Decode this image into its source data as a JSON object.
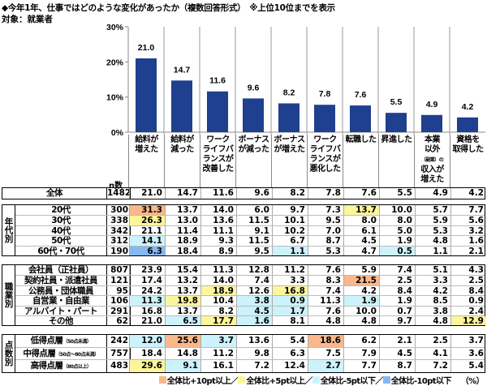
{
  "title": "◆今年1年、仕事ではどのような変化があったか（複数回答形式）　※上位10位までを表示",
  "subtitle": "対象：就業者",
  "colors": {
    "bar": "#1f3f8f",
    "plus10": "#f9b88a",
    "plus5": "#fdf59a",
    "minus5": "#ccf3fb",
    "minus10": "#86b8f0"
  },
  "chart_data": {
    "type": "bar",
    "categories": [
      "給料が増えた",
      "給料が減った",
      "ワークライフバランスが改善した",
      "ボーナスが減った",
      "ボーナスが増えた",
      "ワークライフバランスが悪化した",
      "転職した",
      "昇進した",
      "本業以外（副業）の収入が増えた",
      "資格を取得した"
    ],
    "values": [
      21.0,
      14.7,
      11.6,
      9.6,
      8.2,
      7.8,
      7.6,
      5.5,
      4.9,
      4.2
    ],
    "yticks": [
      "0%",
      "10%",
      "20%",
      "30%"
    ],
    "ylim": [
      0,
      30
    ],
    "grid": false
  },
  "headers": [
    [
      "給料が",
      "増えた"
    ],
    [
      "給料が",
      "減った"
    ],
    [
      "ワーク",
      "ライフバ",
      "ランスが",
      "改善した"
    ],
    [
      "ボーナス",
      "が減った"
    ],
    [
      "ボーナス",
      "が増えた"
    ],
    [
      "ワーク",
      "ライフバ",
      "ランスが",
      "悪化した"
    ],
    [
      "転職した"
    ],
    [
      "昇進した"
    ],
    [
      "本業",
      "以外",
      "（副業）の",
      "収入が",
      "増えた"
    ],
    [
      "資格を",
      "取得した"
    ]
  ],
  "n_label": "n数",
  "total": {
    "label": "全体",
    "n": "1482",
    "values": [
      "21.0",
      "14.7",
      "11.6",
      "9.6",
      "8.2",
      "7.8",
      "7.6",
      "5.5",
      "4.9",
      "4.2"
    ]
  },
  "groups": [
    {
      "label": "年代別",
      "rows": [
        {
          "label": "20代",
          "n": "300",
          "values": [
            "31.3",
            "13.7",
            "14.0",
            "6.0",
            "9.7",
            "7.3",
            "13.7",
            "10.0",
            "5.7",
            "7.7"
          ],
          "hl": [
            "p10",
            "",
            "",
            "",
            "",
            "",
            "p5",
            "",
            "",
            ""
          ]
        },
        {
          "label": "30代",
          "n": "338",
          "values": [
            "26.3",
            "13.0",
            "13.6",
            "11.5",
            "10.1",
            "9.5",
            "8.0",
            "8.0",
            "5.9",
            "5.6"
          ],
          "hl": [
            "p5",
            "",
            "",
            "",
            "",
            "",
            "",
            "",
            "",
            ""
          ]
        },
        {
          "label": "40代",
          "n": "342",
          "values": [
            "21.1",
            "11.4",
            "11.1",
            "9.1",
            "10.2",
            "7.0",
            "6.1",
            "5.0",
            "5.3",
            "3.2"
          ],
          "hl": [
            "",
            "",
            "",
            "",
            "",
            "",
            "",
            "",
            "",
            ""
          ]
        },
        {
          "label": "50代",
          "n": "312",
          "values": [
            "14.1",
            "18.9",
            "9.3",
            "11.5",
            "6.7",
            "8.7",
            "4.5",
            "1.9",
            "4.8",
            "1.6"
          ],
          "hl": [
            "m5",
            "",
            "",
            "",
            "",
            "",
            "",
            "",
            "",
            ""
          ]
        },
        {
          "label": "60代・70代",
          "n": "190",
          "values": [
            "6.3",
            "18.4",
            "8.9",
            "9.5",
            "1.1",
            "5.3",
            "4.7",
            "0.5",
            "1.1",
            "2.1"
          ],
          "hl": [
            "m10",
            "",
            "",
            "",
            "m5",
            "",
            "",
            "m5",
            "",
            ""
          ]
        }
      ]
    },
    {
      "label": "職業別",
      "rows": [
        {
          "label": "会社員（正社員）",
          "n": "807",
          "values": [
            "23.9",
            "15.4",
            "11.3",
            "12.8",
            "11.2",
            "7.6",
            "5.9",
            "7.4",
            "5.1",
            "4.3"
          ],
          "hl": [
            "",
            "",
            "",
            "",
            "",
            "",
            "",
            "",
            "",
            ""
          ]
        },
        {
          "label": "契約社員・派遣社員",
          "n": "121",
          "values": [
            "17.4",
            "13.2",
            "14.0",
            "7.4",
            "3.3",
            "8.3",
            "21.5",
            "2.5",
            "3.3",
            "2.5"
          ],
          "hl": [
            "",
            "",
            "",
            "",
            "",
            "",
            "p10",
            "",
            "",
            ""
          ]
        },
        {
          "label": "公務員・団体職員",
          "n": "95",
          "values": [
            "24.2",
            "13.7",
            "18.9",
            "12.6",
            "16.8",
            "7.4",
            "4.2",
            "8.4",
            "4.2",
            "8.4"
          ],
          "hl": [
            "",
            "",
            "p5",
            "",
            "p5",
            "",
            "",
            "",
            "",
            ""
          ]
        },
        {
          "label": "自営業・自由業",
          "n": "106",
          "values": [
            "11.3",
            "19.8",
            "10.4",
            "3.8",
            "0.9",
            "11.3",
            "1.9",
            "1.9",
            "8.5",
            "0.9"
          ],
          "hl": [
            "m5",
            "p5",
            "",
            "m5",
            "m5",
            "",
            "m5",
            "",
            "",
            ""
          ]
        },
        {
          "label": "アルバイト・パート",
          "n": "291",
          "values": [
            "16.8",
            "13.7",
            "8.2",
            "4.5",
            "1.7",
            "7.6",
            "10.0",
            "0.7",
            "3.8",
            "2.4"
          ],
          "hl": [
            "",
            "",
            "",
            "m5",
            "m5",
            "",
            "",
            "",
            "",
            ""
          ]
        },
        {
          "label": "その他",
          "n": "62",
          "values": [
            "21.0",
            "6.5",
            "17.7",
            "1.6",
            "8.1",
            "4.8",
            "4.8",
            "9.7",
            "4.8",
            "12.9"
          ],
          "hl": [
            "",
            "m5",
            "p5",
            "m5",
            "",
            "",
            "",
            "",
            "",
            "p5"
          ]
        }
      ]
    },
    {
      "label": "点数別",
      "rows": [
        {
          "label": "低得点層",
          "note": "（50点未満）",
          "n": "242",
          "values": [
            "12.0",
            "25.6",
            "3.7",
            "13.6",
            "5.4",
            "18.6",
            "6.2",
            "2.1",
            "2.5",
            "3.7"
          ],
          "hl": [
            "m5",
            "p10",
            "m5",
            "",
            "",
            "p10",
            "",
            "",
            "",
            ""
          ]
        },
        {
          "label": "中得点層",
          "note": "（50点～80点未満）",
          "n": "757",
          "values": [
            "18.4",
            "14.8",
            "11.2",
            "9.8",
            "6.3",
            "7.5",
            "7.9",
            "4.5",
            "4.1",
            "3.6"
          ],
          "hl": [
            "",
            "",
            "",
            "",
            "",
            "",
            "",
            "",
            "",
            ""
          ]
        },
        {
          "label": "高得点層",
          "note": "（80点以上）",
          "n": "483",
          "values": [
            "29.6",
            "9.1",
            "16.1",
            "7.2",
            "12.4",
            "2.7",
            "7.7",
            "8.7",
            "7.2",
            "5.4"
          ],
          "hl": [
            "p5",
            "m5",
            "",
            "",
            "",
            "m5",
            "",
            "",
            "",
            ""
          ]
        }
      ]
    }
  ],
  "legend": {
    "plus10": "全体比+10pt以上／",
    "plus5": "全体比+5pt以上／",
    "minus5": "全体比-5pt以下／",
    "minus10": "全体比-10pt以下",
    "unit": "（%）"
  }
}
